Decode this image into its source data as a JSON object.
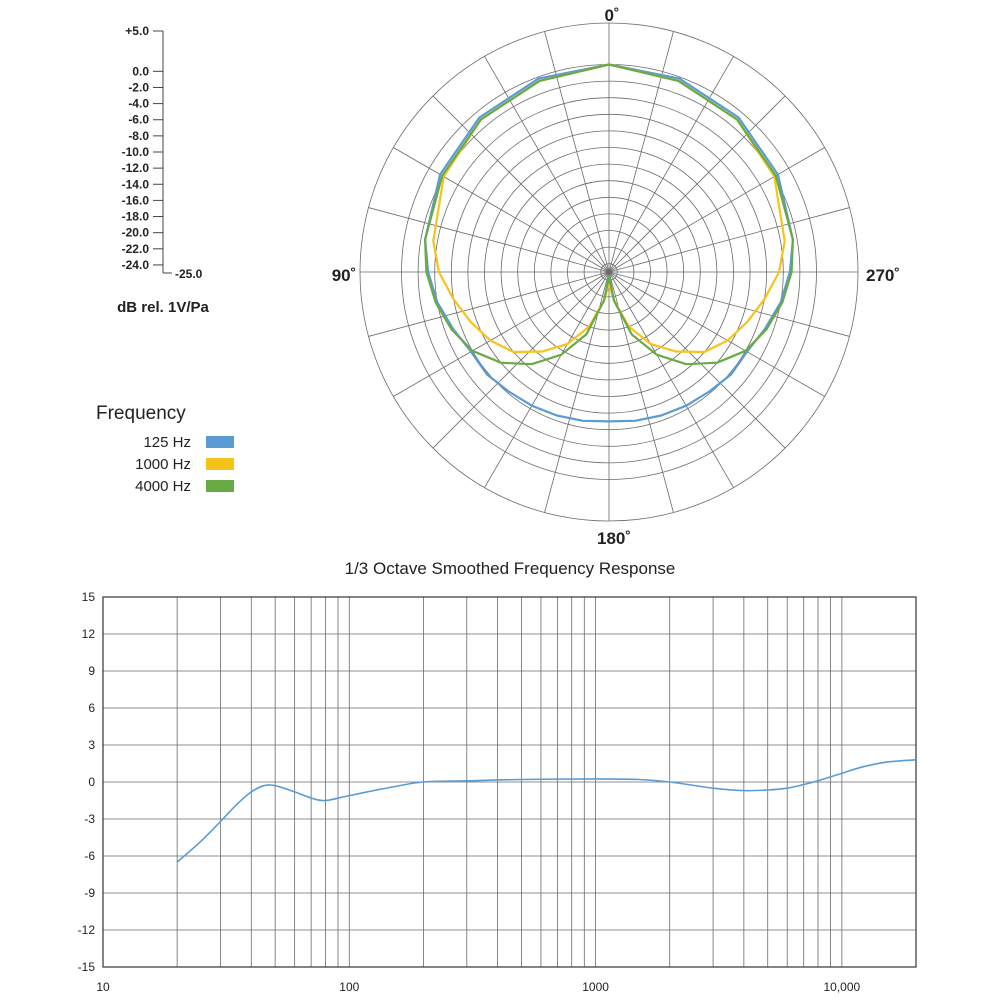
{
  "polar_scale": {
    "ticks": [
      "+5.0",
      "0.0",
      "-2.0",
      "-4.0",
      "-6.0",
      "-8.0",
      "-10.0",
      "-12.0",
      "-14.0",
      "-16.0",
      "-18.0",
      "-20.0",
      "-22.0",
      "-24.0"
    ],
    "tick_values": [
      5,
      0,
      -2,
      -4,
      -6,
      -8,
      -10,
      -12,
      -14,
      -16,
      -18,
      -20,
      -22,
      -24
    ],
    "bottom_label": "-25.0",
    "bottom_value": -25,
    "unit": "dB rel. 1V/Pa"
  },
  "legend": {
    "title": "Frequency",
    "items": [
      {
        "label": "125 Hz",
        "color": "#5b9bd5"
      },
      {
        "label": "1000 Hz",
        "color": "#f7c31a"
      },
      {
        "label": "4000 Hz",
        "color": "#6aaa45"
      }
    ]
  },
  "chart_data": [
    {
      "type": "polar",
      "angle_labels": [
        "0˚",
        "90˚",
        "180˚",
        "270˚"
      ],
      "rlim": [
        -25,
        5
      ],
      "grid": true,
      "series": [
        {
          "name": "125 Hz",
          "color": "#5b9bd5",
          "angles": [
            0,
            20,
            40,
            60,
            80,
            90,
            100,
            110,
            120,
            130,
            140,
            150,
            160,
            170,
            180
          ],
          "values": [
            0,
            -0.2,
            -0.7,
            -1.5,
            -2.5,
            -3.2,
            -4.0,
            -5.0,
            -5.8,
            -5.8,
            -6.2,
            -6.4,
            -6.6,
            -6.8,
            -7.0
          ]
        },
        {
          "name": "1000 Hz",
          "color": "#f7c31a",
          "angles": [
            0,
            20,
            40,
            60,
            80,
            90,
            100,
            110,
            120,
            130,
            140,
            150,
            160,
            170,
            175,
            180
          ],
          "values": [
            0,
            -0.5,
            -1.0,
            -2.0,
            -3.5,
            -4.5,
            -6.0,
            -7.3,
            -8.5,
            -10.0,
            -12.5,
            -15.0,
            -18.0,
            -21.5,
            -23.0,
            -23.5
          ]
        },
        {
          "name": "4000 Hz",
          "color": "#6aaa45",
          "angles": [
            0,
            20,
            40,
            60,
            80,
            90,
            100,
            110,
            120,
            130,
            140,
            150,
            160,
            170,
            180
          ],
          "values": [
            0,
            -0.5,
            -1.0,
            -1.8,
            -2.5,
            -3.0,
            -3.8,
            -4.8,
            -6.0,
            -8.0,
            -10.5,
            -13.5,
            -17.0,
            -21.5,
            -24.5
          ]
        }
      ]
    },
    {
      "type": "line",
      "title": "1/3 Octave Smoothed Frequency Response",
      "xscale": "log",
      "xlim": [
        10,
        20000
      ],
      "ylim": [
        -15,
        15
      ],
      "grid": true,
      "x_ticks": [
        10,
        100,
        1000,
        10000
      ],
      "x_tick_labels": [
        "10",
        "100",
        "1000",
        "10,000"
      ],
      "y_ticks": [
        15,
        12,
        9,
        6,
        3,
        0,
        -3,
        -6,
        -9,
        -12,
        -15
      ],
      "y_tick_labels": [
        "15",
        "12",
        "9",
        "6",
        "3",
        "0",
        "-3",
        "-6",
        "-9",
        "-12",
        "-15"
      ],
      "series": [
        {
          "color": "#5b9bd5",
          "x": [
            20,
            25,
            30,
            35,
            40,
            45,
            50,
            60,
            70,
            80,
            100,
            150,
            200,
            300,
            500,
            1000,
            1500,
            2000,
            3000,
            4000,
            5000,
            6000,
            7000,
            8000,
            10000,
            12000,
            15000,
            20000
          ],
          "y": [
            -6.5,
            -4.8,
            -3.2,
            -1.8,
            -0.8,
            -0.3,
            -0.3,
            -0.8,
            -1.3,
            -1.5,
            -1.1,
            -0.4,
            0.0,
            0.1,
            0.2,
            0.25,
            0.2,
            0.0,
            -0.5,
            -0.7,
            -0.65,
            -0.5,
            -0.2,
            0.1,
            0.7,
            1.2,
            1.6,
            1.8
          ]
        }
      ]
    }
  ]
}
